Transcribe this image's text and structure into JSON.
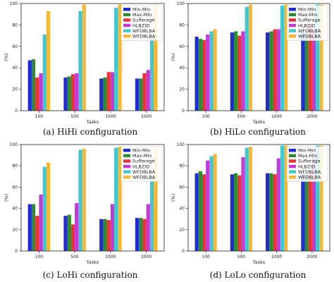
{
  "chart_data": [
    {
      "type": "bar",
      "caption": "(a) HiHi configuration",
      "categories": [
        "100",
        "500",
        "1000",
        "2000"
      ],
      "xlabel": "Tasks",
      "ylabel": "(%)",
      "ylim": [
        0,
        100
      ],
      "yticks": [
        "0",
        "20",
        "40",
        "60",
        "80",
        "100"
      ],
      "legend_position": "top-right",
      "series": [
        {
          "name": "Min-Min",
          "color": "#1f2bd6",
          "values": [
            47,
            31,
            30,
            30
          ]
        },
        {
          "name": "Max-Min",
          "color": "#2e8b2e",
          "values": [
            48,
            32,
            31,
            30
          ]
        },
        {
          "name": "Sufferage",
          "color": "#e8343a",
          "values": [
            31,
            34,
            36,
            35
          ]
        },
        {
          "name": "HLBZID",
          "color": "#c43ad6",
          "values": [
            35,
            35,
            36,
            38
          ]
        },
        {
          "name": "WFDBLBA",
          "color": "#3ec9d2",
          "values": [
            71,
            93,
            96,
            70
          ]
        },
        {
          "name": "WFDBLBA",
          "color": "#f7b733",
          "values": [
            93,
            99,
            99,
            98
          ]
        }
      ]
    },
    {
      "type": "bar",
      "caption": "(b) HiLo configuration",
      "categories": [
        "100",
        "500",
        "1000",
        "2000"
      ],
      "xlabel": "Tasks",
      "ylabel": "(%)",
      "ylim": [
        0,
        100
      ],
      "yticks": [
        "0",
        "20",
        "40",
        "60",
        "80",
        "100"
      ],
      "legend_position": "top-right",
      "series": [
        {
          "name": "Min-Min",
          "color": "#1f2bd6",
          "values": [
            69,
            73,
            73,
            73
          ]
        },
        {
          "name": "Max-Min",
          "color": "#2e8b2e",
          "values": [
            67,
            74,
            74,
            72
          ]
        },
        {
          "name": "Sufferage",
          "color": "#e8343a",
          "values": [
            66,
            70,
            76,
            79
          ]
        },
        {
          "name": "HLBZID",
          "color": "#c43ad6",
          "values": [
            71,
            74,
            76,
            76
          ]
        },
        {
          "name": "WFDBLBA",
          "color": "#3ec9d2",
          "values": [
            74,
            97,
            98,
            99
          ]
        },
        {
          "name": "WFDBLBA",
          "color": "#f7b733",
          "values": [
            76,
            99,
            99,
            99
          ]
        }
      ]
    },
    {
      "type": "bar",
      "caption": "(c) LoHi configuration",
      "categories": [
        "100",
        "500",
        "1000",
        "2000"
      ],
      "xlabel": "Tasks",
      "ylabel": "(%)",
      "ylim": [
        0,
        100
      ],
      "yticks": [
        "0",
        "20",
        "40",
        "60",
        "80",
        "100"
      ],
      "legend_position": "top-right",
      "series": [
        {
          "name": "Min-Min",
          "color": "#1f2bd6",
          "values": [
            44,
            33,
            30,
            31
          ]
        },
        {
          "name": "Max-Min",
          "color": "#2e8b2e",
          "values": [
            44,
            34,
            30,
            31
          ]
        },
        {
          "name": "Sufferage",
          "color": "#e8343a",
          "values": [
            33,
            25,
            29,
            30
          ]
        },
        {
          "name": "HLBZID",
          "color": "#c43ad6",
          "values": [
            53,
            45,
            44,
            44
          ]
        },
        {
          "name": "WFDBLBA",
          "color": "#3ec9d2",
          "values": [
            79,
            95,
            97,
            70
          ]
        },
        {
          "name": "WFDBLBA",
          "color": "#f7b733",
          "values": [
            83,
            96,
            98,
            96
          ]
        }
      ]
    },
    {
      "type": "bar",
      "caption": "(d) LoLo configuration",
      "categories": [
        "100",
        "500",
        "1000",
        "2000"
      ],
      "xlabel": "Tasks",
      "ylabel": "(%)",
      "ylim": [
        0,
        100
      ],
      "yticks": [
        "0",
        "20",
        "40",
        "60",
        "80",
        "100"
      ],
      "legend_position": "top-right",
      "series": [
        {
          "name": "Min-Min",
          "color": "#1f2bd6",
          "values": [
            73,
            72,
            73,
            73
          ]
        },
        {
          "name": "Max-Min",
          "color": "#2e8b2e",
          "values": [
            75,
            73,
            73,
            72
          ]
        },
        {
          "name": "Sufferage",
          "color": "#e8343a",
          "values": [
            72,
            71,
            72,
            73
          ]
        },
        {
          "name": "HLBZID",
          "color": "#c43ad6",
          "values": [
            85,
            88,
            87,
            88
          ]
        },
        {
          "name": "WFDBLBA",
          "color": "#3ec9d2",
          "values": [
            89,
            97,
            99,
            99
          ]
        },
        {
          "name": "WFDBLBA",
          "color": "#f7b733",
          "values": [
            91,
            98,
            99,
            99
          ]
        }
      ]
    }
  ]
}
